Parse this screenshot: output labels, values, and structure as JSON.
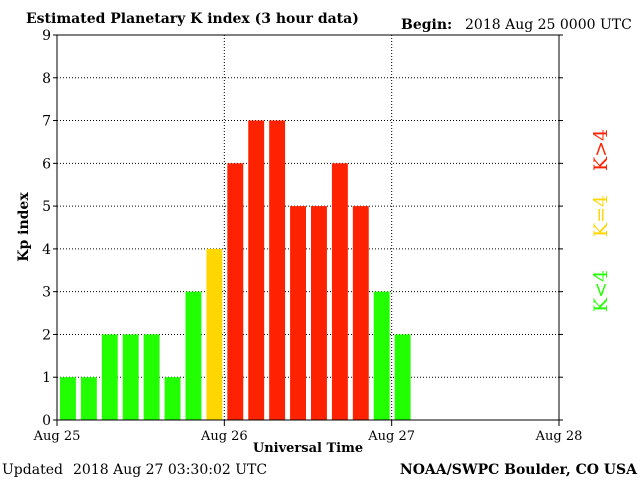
{
  "header": {
    "title": "Estimated Planetary K index (3 hour data)",
    "begin_label": "Begin:",
    "begin_value": "2018 Aug 25 0000 UTC"
  },
  "footer": {
    "updated_label": "Updated",
    "updated_value": "2018 Aug 27 03:30:02 UTC",
    "source": "NOAA/SWPC Boulder, CO USA"
  },
  "legend": {
    "high": "K>4",
    "mid": "K=4",
    "low": "K<4"
  },
  "colors": {
    "low": "#22ff00",
    "mid": "#ffd700",
    "high": "#ff2200",
    "background": "#ffffff",
    "axis": "#000000"
  },
  "chart_data": {
    "type": "bar",
    "title": "Estimated Planetary K index (3 hour data)",
    "xlabel": "Universal Time",
    "ylabel": "Kp index",
    "ylim": [
      0,
      9
    ],
    "yticks": [
      0,
      1,
      2,
      3,
      4,
      5,
      6,
      7,
      8,
      9
    ],
    "xticks": [
      "Aug 25",
      "Aug 26",
      "Aug 27",
      "Aug 28"
    ],
    "bar_interval": "3 hours",
    "grid": "dotted",
    "legend_placement": "right",
    "values": [
      1,
      1,
      2,
      2,
      2,
      1,
      3,
      4,
      6,
      7,
      7,
      5,
      5,
      6,
      5,
      3,
      2
    ],
    "color_rule": {
      "low": "K<4",
      "mid": "K=4",
      "high": "K>4"
    }
  }
}
